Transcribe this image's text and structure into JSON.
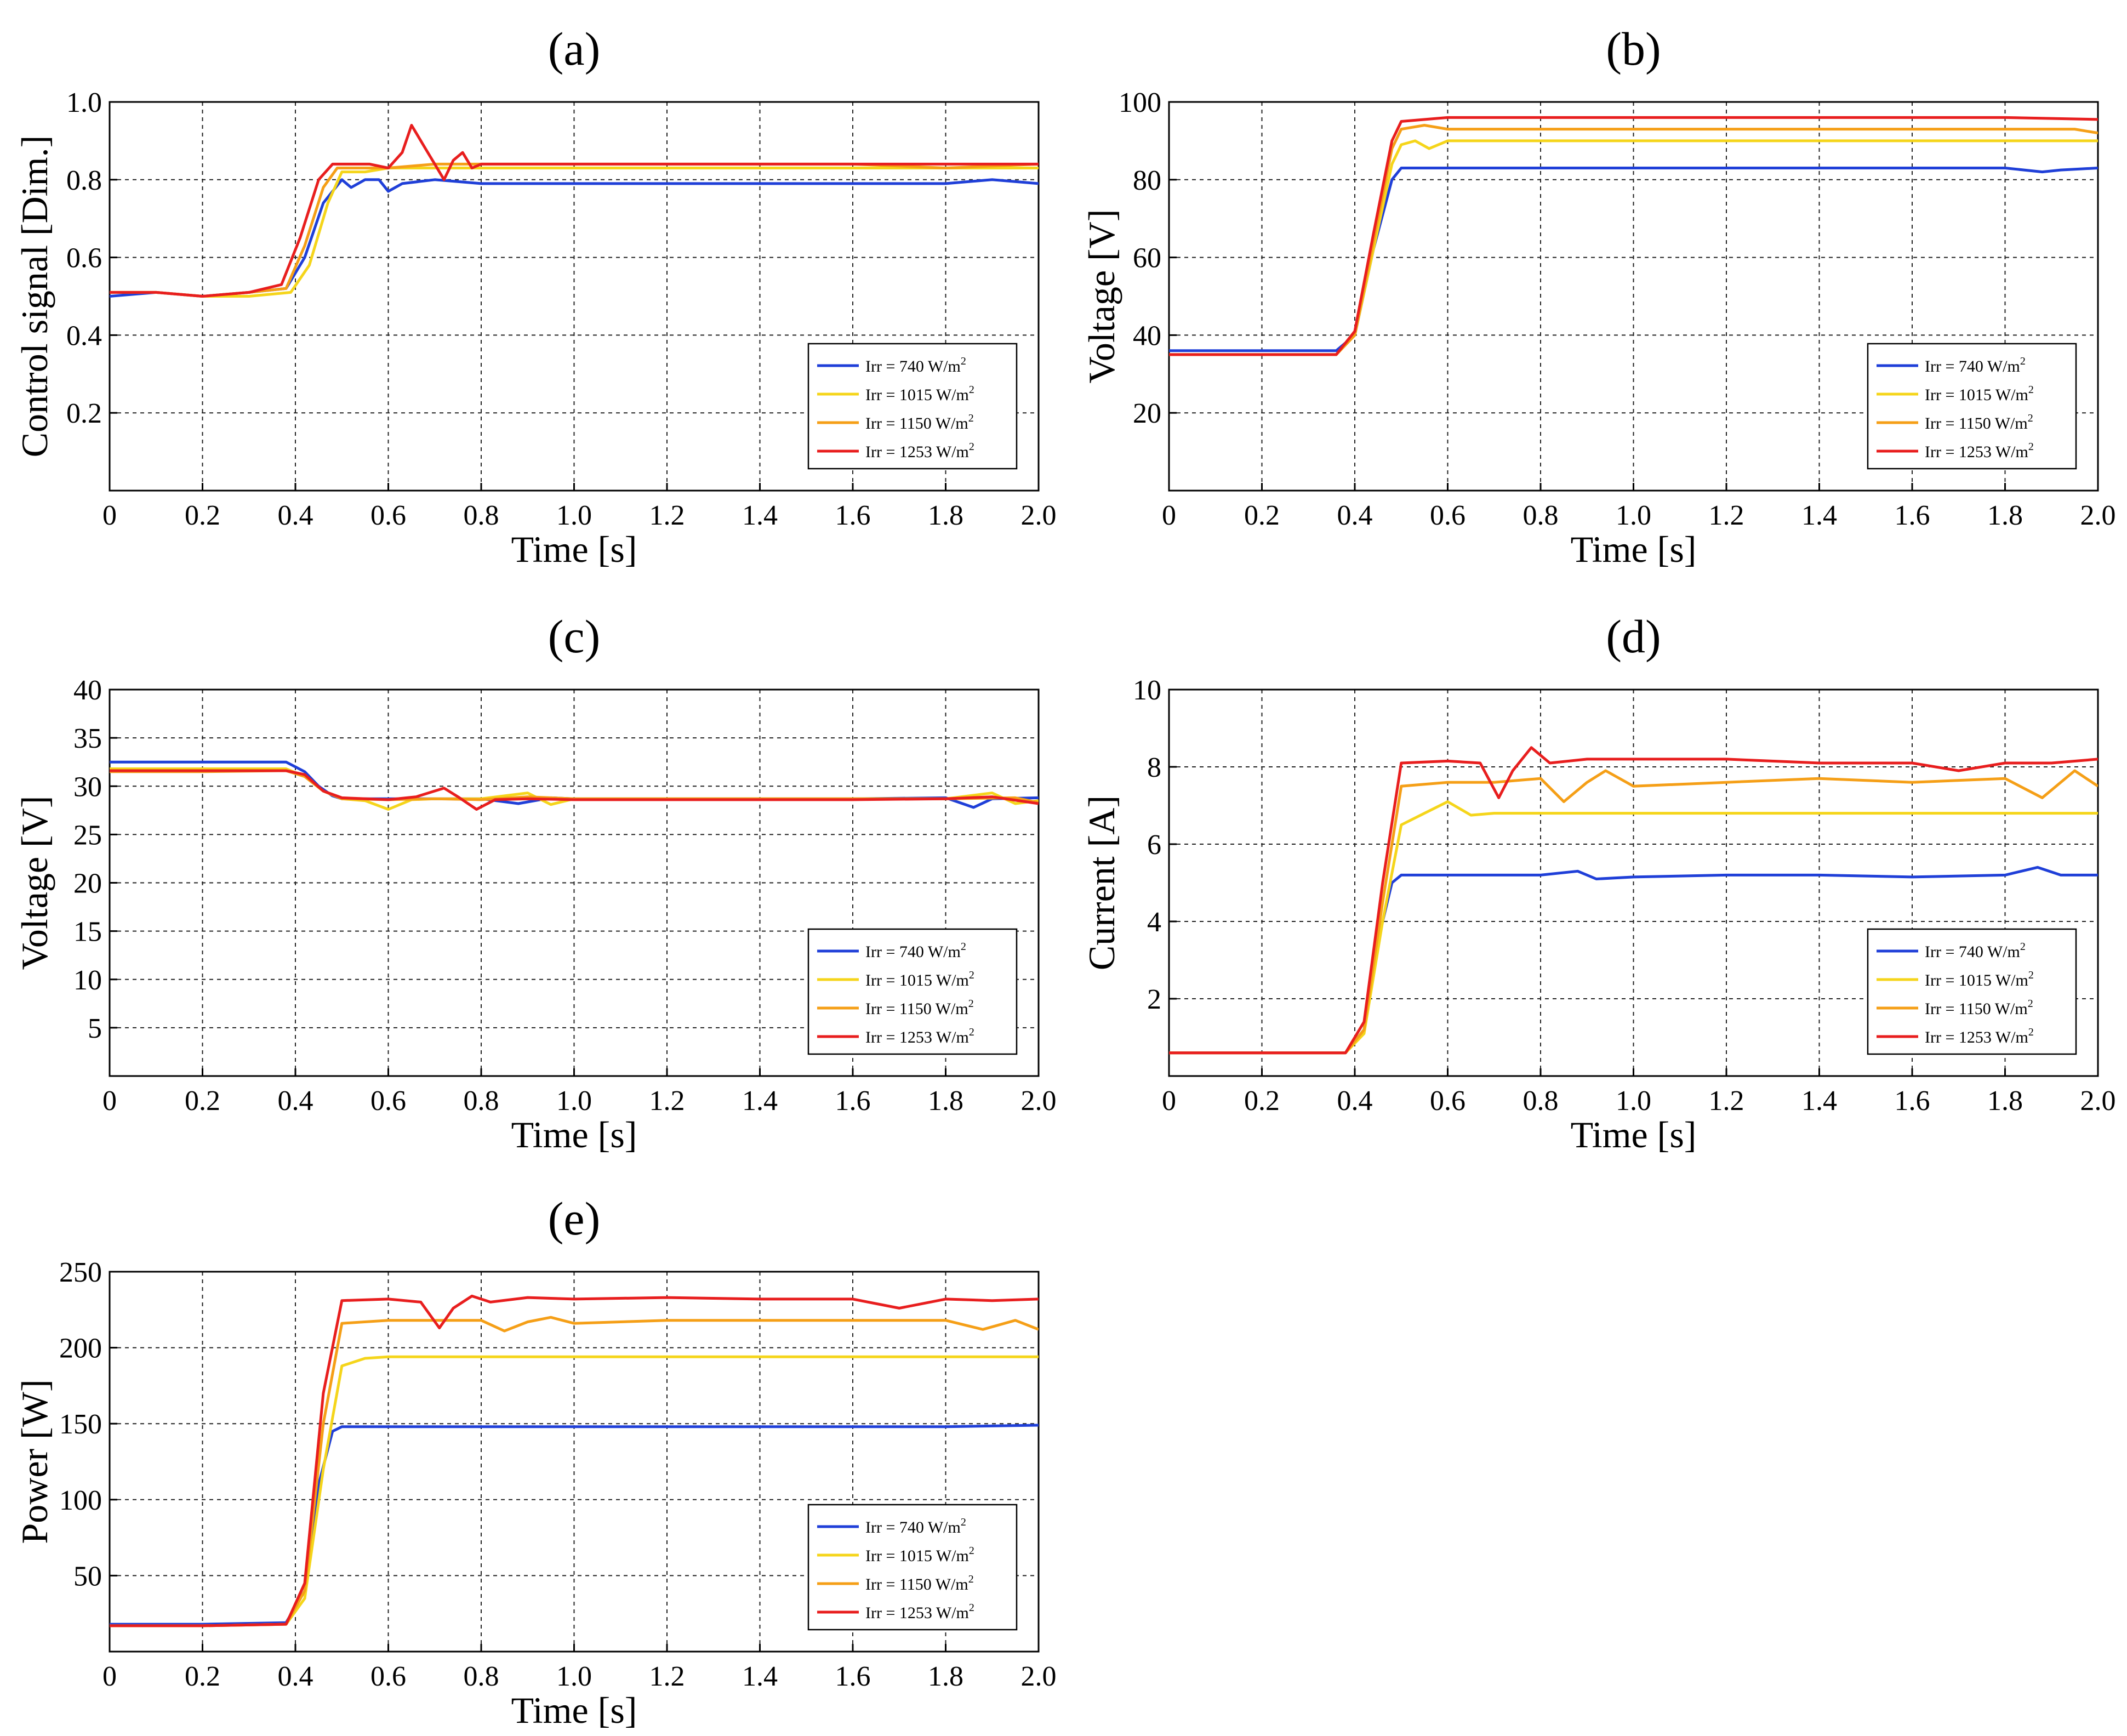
{
  "figure": {
    "legend_labels": [
      "Irr = 740 W/m",
      "Irr = 1015 W/m",
      "Irr = 1150 W/m",
      "Irr = 1253 W/m"
    ],
    "legend_sup": "2",
    "series_colors": [
      "#1f3fd8",
      "#f5d51b",
      "#f59f17",
      "#e81e1e"
    ]
  },
  "chart_data": [
    {
      "id": "a",
      "type": "line",
      "title": "(a)",
      "xlabel": "Time [s]",
      "ylabel": "Control signal [Dim.]",
      "xlim": [
        0,
        2.0
      ],
      "ylim": [
        0,
        1.0
      ],
      "xticks": [
        "0",
        "0.2",
        "0.4",
        "0.6",
        "0.8",
        "1.0",
        "1.2",
        "1.4",
        "1.6",
        "1.8",
        "2.0"
      ],
      "yticks": [
        "0.2",
        "0.4",
        "0.6",
        "0.8",
        "1.0"
      ],
      "grid": true,
      "legend": "bottom-right",
      "series": [
        {
          "name": "Irr = 740 W/m2",
          "x": [
            0,
            0.1,
            0.2,
            0.3,
            0.38,
            0.42,
            0.46,
            0.5,
            0.52,
            0.55,
            0.58,
            0.6,
            0.63,
            0.7,
            0.8,
            1.0,
            1.2,
            1.4,
            1.6,
            1.8,
            1.9,
            2.0
          ],
          "y": [
            0.5,
            0.51,
            0.5,
            0.51,
            0.52,
            0.6,
            0.74,
            0.8,
            0.78,
            0.8,
            0.8,
            0.77,
            0.79,
            0.8,
            0.79,
            0.79,
            0.79,
            0.79,
            0.79,
            0.79,
            0.8,
            0.79
          ]
        },
        {
          "name": "Irr = 1015 W/m2",
          "x": [
            0,
            0.1,
            0.2,
            0.3,
            0.39,
            0.43,
            0.47,
            0.5,
            0.55,
            0.6,
            0.7,
            0.8,
            1.0,
            1.2,
            1.4,
            1.6,
            1.8,
            2.0
          ],
          "y": [
            0.51,
            0.51,
            0.5,
            0.5,
            0.51,
            0.58,
            0.74,
            0.82,
            0.82,
            0.83,
            0.83,
            0.83,
            0.83,
            0.83,
            0.83,
            0.83,
            0.83,
            0.83
          ]
        },
        {
          "name": "Irr = 1150 W/m2",
          "x": [
            0,
            0.1,
            0.2,
            0.3,
            0.38,
            0.42,
            0.46,
            0.49,
            0.55,
            0.6,
            0.7,
            0.8,
            1.0,
            1.2,
            1.4,
            1.6,
            1.8,
            2.0
          ],
          "y": [
            0.51,
            0.51,
            0.5,
            0.51,
            0.52,
            0.63,
            0.78,
            0.83,
            0.83,
            0.83,
            0.84,
            0.84,
            0.84,
            0.84,
            0.84,
            0.84,
            0.83,
            0.84
          ]
        },
        {
          "name": "Irr = 1253 W/m2",
          "x": [
            0,
            0.1,
            0.2,
            0.3,
            0.37,
            0.41,
            0.45,
            0.48,
            0.52,
            0.56,
            0.6,
            0.63,
            0.65,
            0.66,
            0.68,
            0.7,
            0.72,
            0.74,
            0.76,
            0.78,
            0.8,
            1.0,
            1.2,
            1.4,
            1.6,
            1.8,
            2.0
          ],
          "y": [
            0.51,
            0.51,
            0.5,
            0.51,
            0.53,
            0.65,
            0.8,
            0.84,
            0.84,
            0.84,
            0.83,
            0.87,
            0.94,
            0.92,
            0.88,
            0.84,
            0.8,
            0.85,
            0.87,
            0.83,
            0.84,
            0.84,
            0.84,
            0.84,
            0.84,
            0.84,
            0.84
          ]
        }
      ]
    },
    {
      "id": "b",
      "type": "line",
      "title": "(b)",
      "xlabel": "Time [s]",
      "ylabel": "Voltage [V]",
      "xlim": [
        0,
        2.0
      ],
      "ylim": [
        0,
        100
      ],
      "xticks": [
        "0",
        "0.2",
        "0.4",
        "0.6",
        "0.8",
        "1.0",
        "1.2",
        "1.4",
        "1.6",
        "1.8",
        "2.0"
      ],
      "yticks": [
        "20",
        "40",
        "60",
        "80",
        "100"
      ],
      "grid": true,
      "legend": "bottom-right",
      "series": [
        {
          "name": "Irr = 740 W/m2",
          "x": [
            0,
            0.2,
            0.36,
            0.4,
            0.44,
            0.48,
            0.5,
            0.6,
            0.8,
            1.0,
            1.2,
            1.4,
            1.6,
            1.8,
            1.88,
            1.92,
            2.0
          ],
          "y": [
            36,
            36,
            36,
            40,
            62,
            80,
            83,
            83,
            83,
            83,
            83,
            83,
            83,
            83,
            82,
            82.5,
            83
          ]
        },
        {
          "name": "Irr = 1015 W/m2",
          "x": [
            0,
            0.2,
            0.36,
            0.4,
            0.44,
            0.48,
            0.5,
            0.53,
            0.56,
            0.6,
            0.8,
            1.0,
            1.2,
            1.4,
            1.6,
            1.8,
            2.0
          ],
          "y": [
            35,
            35,
            35,
            40,
            62,
            84,
            89,
            90,
            88,
            90,
            90,
            90,
            90,
            90,
            90,
            90,
            90
          ]
        },
        {
          "name": "Irr = 1150 W/m2",
          "x": [
            0,
            0.2,
            0.36,
            0.4,
            0.44,
            0.48,
            0.5,
            0.55,
            0.6,
            0.8,
            1.0,
            1.2,
            1.4,
            1.6,
            1.8,
            1.95,
            2.0
          ],
          "y": [
            35,
            35,
            35,
            40,
            64,
            88,
            93,
            94,
            93,
            93,
            93,
            93,
            93,
            93,
            93,
            93,
            92
          ]
        },
        {
          "name": "Irr = 1253 W/m2",
          "x": [
            0,
            0.2,
            0.36,
            0.4,
            0.44,
            0.48,
            0.5,
            0.6,
            0.8,
            1.0,
            1.2,
            1.4,
            1.6,
            1.8,
            2.0
          ],
          "y": [
            35,
            35,
            35,
            41,
            66,
            90,
            95,
            96,
            96,
            96,
            96,
            96,
            96,
            96,
            95.5
          ]
        }
      ]
    },
    {
      "id": "c",
      "type": "line",
      "title": "(c)",
      "xlabel": "Time [s]",
      "ylabel": "Voltage [V]",
      "xlim": [
        0,
        2.0
      ],
      "ylim": [
        0,
        40
      ],
      "xticks": [
        "0",
        "0.2",
        "0.4",
        "0.6",
        "0.8",
        "1.0",
        "1.2",
        "1.4",
        "1.6",
        "1.8",
        "2.0"
      ],
      "yticks": [
        "5",
        "10",
        "15",
        "20",
        "25",
        "30",
        "35",
        "40"
      ],
      "grid": true,
      "legend": "bottom-right",
      "series": [
        {
          "name": "Irr = 740 W/m2",
          "x": [
            0,
            0.2,
            0.38,
            0.42,
            0.45,
            0.48,
            0.5,
            0.6,
            0.7,
            0.8,
            0.88,
            0.95,
            1.0,
            1.2,
            1.4,
            1.6,
            1.8,
            1.86,
            1.9,
            2.0
          ],
          "y": [
            32.5,
            32.5,
            32.5,
            31.5,
            30,
            29,
            28.7,
            28.7,
            28.7,
            28.7,
            28.2,
            28.8,
            28.7,
            28.7,
            28.7,
            28.7,
            28.8,
            27.8,
            28.7,
            28.8
          ]
        },
        {
          "name": "Irr = 1015 W/m2",
          "x": [
            0,
            0.2,
            0.38,
            0.42,
            0.46,
            0.5,
            0.55,
            0.6,
            0.65,
            0.7,
            0.8,
            0.9,
            0.95,
            1.0,
            1.2,
            1.4,
            1.6,
            1.8,
            1.9,
            1.95,
            2.0
          ],
          "y": [
            31.8,
            31.8,
            31.8,
            31.0,
            29.5,
            28.7,
            28.5,
            27.6,
            28.6,
            28.7,
            28.7,
            29.3,
            28.1,
            28.7,
            28.7,
            28.7,
            28.7,
            28.7,
            29.3,
            28.2,
            28.5
          ]
        },
        {
          "name": "Irr = 1150 W/m2",
          "x": [
            0,
            0.2,
            0.38,
            0.42,
            0.46,
            0.5,
            0.6,
            0.7,
            0.8,
            0.9,
            1.0,
            1.2,
            1.4,
            1.6,
            1.8,
            1.95,
            2.0
          ],
          "y": [
            31.5,
            31.5,
            31.6,
            31.0,
            29.5,
            28.7,
            28.6,
            28.7,
            28.6,
            28.9,
            28.7,
            28.7,
            28.7,
            28.7,
            28.7,
            28.8,
            28.3
          ]
        },
        {
          "name": "Irr = 1253 W/m2",
          "x": [
            0,
            0.2,
            0.38,
            0.42,
            0.46,
            0.5,
            0.6,
            0.66,
            0.72,
            0.75,
            0.79,
            0.83,
            0.9,
            1.0,
            1.2,
            1.4,
            1.6,
            1.8,
            1.9,
            2.0
          ],
          "y": [
            31.6,
            31.6,
            31.6,
            31.2,
            29.5,
            28.8,
            28.6,
            28.9,
            29.8,
            28.9,
            27.6,
            28.6,
            28.7,
            28.6,
            28.6,
            28.6,
            28.6,
            28.7,
            28.9,
            28.2
          ]
        }
      ]
    },
    {
      "id": "d",
      "type": "line",
      "title": "(d)",
      "xlabel": "Time [s]",
      "ylabel": "Current [A]",
      "xlim": [
        0,
        2.0
      ],
      "ylim": [
        0,
        10
      ],
      "xticks": [
        "0",
        "0.2",
        "0.4",
        "0.6",
        "0.8",
        "1.0",
        "1.2",
        "1.4",
        "1.6",
        "1.8",
        "2.0"
      ],
      "yticks": [
        "2",
        "4",
        "6",
        "8",
        "10"
      ],
      "grid": true,
      "legend": "bottom-right",
      "series": [
        {
          "name": "Irr = 740 W/m2",
          "x": [
            0,
            0.2,
            0.38,
            0.42,
            0.45,
            0.48,
            0.5,
            0.6,
            0.8,
            0.88,
            0.92,
            1.0,
            1.2,
            1.4,
            1.6,
            1.8,
            1.87,
            1.92,
            2.0
          ],
          "y": [
            0.6,
            0.6,
            0.6,
            1.2,
            3.5,
            5.0,
            5.2,
            5.2,
            5.2,
            5.3,
            5.1,
            5.15,
            5.2,
            5.2,
            5.15,
            5.2,
            5.4,
            5.2,
            5.2
          ]
        },
        {
          "name": "Irr = 1015 W/m2",
          "x": [
            0,
            0.2,
            0.38,
            0.42,
            0.46,
            0.5,
            0.55,
            0.6,
            0.65,
            0.7,
            0.8,
            1.0,
            1.2,
            1.4,
            1.6,
            1.8,
            2.0
          ],
          "y": [
            0.6,
            0.6,
            0.6,
            1.1,
            4.0,
            6.5,
            6.8,
            7.1,
            6.75,
            6.8,
            6.8,
            6.8,
            6.8,
            6.8,
            6.8,
            6.8,
            6.8
          ]
        },
        {
          "name": "Irr = 1150 W/m2",
          "x": [
            0,
            0.2,
            0.38,
            0.42,
            0.46,
            0.5,
            0.6,
            0.7,
            0.8,
            0.85,
            0.9,
            0.94,
            1.0,
            1.2,
            1.4,
            1.6,
            1.8,
            1.88,
            1.95,
            2.0
          ],
          "y": [
            0.6,
            0.6,
            0.6,
            1.2,
            4.5,
            7.5,
            7.6,
            7.6,
            7.7,
            7.1,
            7.6,
            7.9,
            7.5,
            7.6,
            7.7,
            7.6,
            7.7,
            7.2,
            7.9,
            7.5
          ]
        },
        {
          "name": "Irr = 1253 W/m2",
          "x": [
            0,
            0.2,
            0.38,
            0.42,
            0.46,
            0.5,
            0.6,
            0.67,
            0.71,
            0.74,
            0.78,
            0.82,
            0.9,
            1.0,
            1.2,
            1.4,
            1.6,
            1.7,
            1.8,
            1.9,
            2.0
          ],
          "y": [
            0.6,
            0.6,
            0.6,
            1.4,
            5.0,
            8.1,
            8.15,
            8.1,
            7.2,
            7.9,
            8.5,
            8.1,
            8.2,
            8.2,
            8.2,
            8.1,
            8.1,
            7.9,
            8.1,
            8.1,
            8.2
          ]
        }
      ]
    },
    {
      "id": "e",
      "type": "line",
      "title": "(e)",
      "xlabel": "Time [s]",
      "ylabel": "Power [W]",
      "xlim": [
        0,
        2.0
      ],
      "ylim": [
        0,
        250
      ],
      "xticks": [
        "0",
        "0.2",
        "0.4",
        "0.6",
        "0.8",
        "1.0",
        "1.2",
        "1.4",
        "1.6",
        "1.8",
        "2.0"
      ],
      "yticks": [
        "50",
        "100",
        "150",
        "200",
        "250"
      ],
      "grid": true,
      "legend": "bottom-right",
      "series": [
        {
          "name": "Irr = 740 W/m2",
          "x": [
            0,
            0.2,
            0.38,
            0.42,
            0.45,
            0.48,
            0.5,
            0.6,
            0.8,
            1.0,
            1.2,
            1.4,
            1.6,
            1.8,
            2.0
          ],
          "y": [
            18,
            18,
            19,
            40,
            110,
            145,
            148,
            148,
            148,
            148,
            148,
            148,
            148,
            148,
            149
          ]
        },
        {
          "name": "Irr = 1015 W/m2",
          "x": [
            0,
            0.2,
            0.38,
            0.42,
            0.46,
            0.5,
            0.55,
            0.6,
            0.8,
            1.0,
            1.2,
            1.4,
            1.6,
            1.8,
            2.0
          ],
          "y": [
            17,
            17,
            18,
            35,
            120,
            188,
            193,
            194,
            194,
            194,
            194,
            194,
            194,
            194,
            194
          ]
        },
        {
          "name": "Irr = 1150 W/m2",
          "x": [
            0,
            0.2,
            0.38,
            0.42,
            0.46,
            0.5,
            0.6,
            0.7,
            0.8,
            0.85,
            0.9,
            0.95,
            1.0,
            1.2,
            1.4,
            1.6,
            1.8,
            1.88,
            1.95,
            2.0
          ],
          "y": [
            17,
            17,
            18,
            40,
            150,
            216,
            218,
            218,
            218,
            211,
            217,
            220,
            216,
            218,
            218,
            218,
            218,
            212,
            218,
            212
          ]
        },
        {
          "name": "Irr = 1253 W/m2",
          "x": [
            0,
            0.2,
            0.38,
            0.42,
            0.46,
            0.5,
            0.6,
            0.67,
            0.71,
            0.74,
            0.78,
            0.82,
            0.9,
            1.0,
            1.2,
            1.4,
            1.6,
            1.7,
            1.8,
            1.9,
            2.0
          ],
          "y": [
            17,
            17,
            18,
            45,
            170,
            231,
            232,
            230,
            213,
            226,
            234,
            230,
            233,
            232,
            233,
            232,
            232,
            226,
            232,
            231,
            232
          ]
        }
      ]
    }
  ]
}
